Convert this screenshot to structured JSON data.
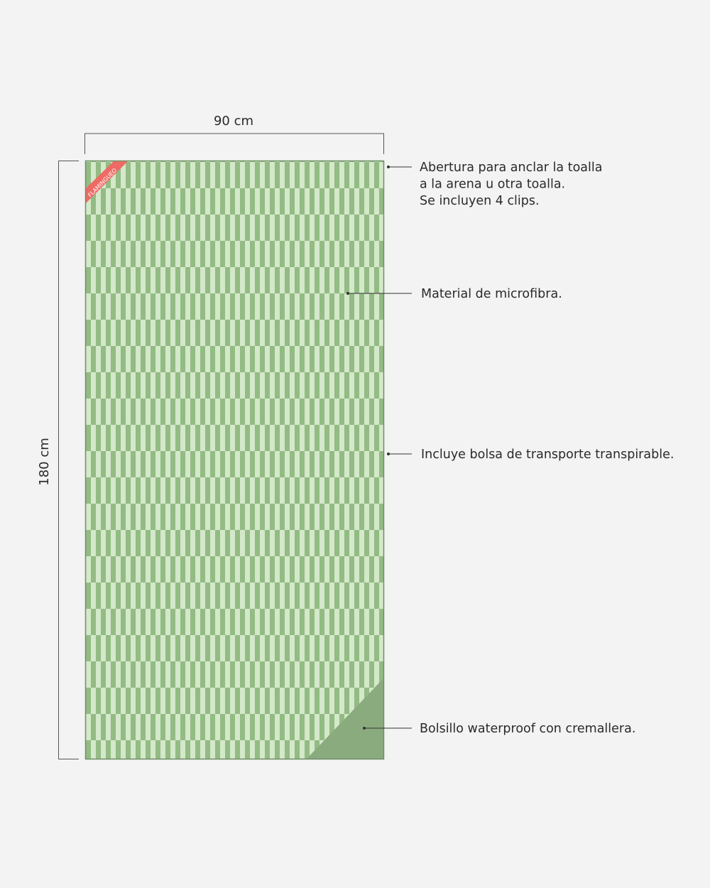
{
  "dimensions": {
    "width": "90 cm",
    "height": "180 cm"
  },
  "brand": "FLAMINGUEO",
  "annotations": [
    {
      "lines": [
        "Abertura para anclar la toalla",
        "a la arena u otra toalla.",
        "Se incluyen 4 clips."
      ]
    },
    {
      "lines": [
        "Material de microfibra."
      ]
    },
    {
      "lines": [
        "Incluye bolsa de transporte transpirable."
      ]
    },
    {
      "lines": [
        "Bolsillo waterproof con cremallera."
      ]
    }
  ]
}
